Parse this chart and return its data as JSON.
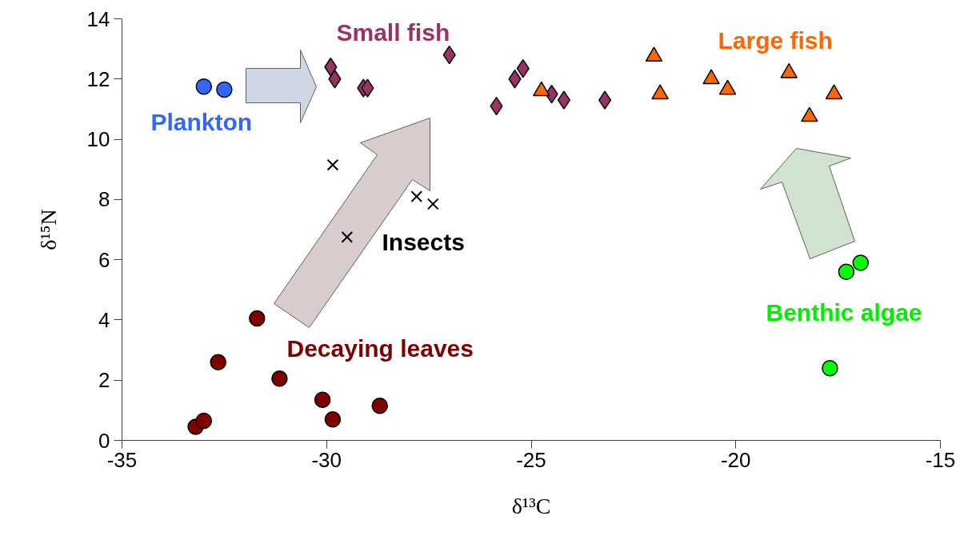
{
  "chart_data": {
    "type": "scatter",
    "xlabel": "δ¹³C",
    "ylabel": "δ¹⁵N",
    "xlim": [
      -35,
      -15
    ],
    "ylim": [
      0,
      14
    ],
    "xticks": [
      -35,
      -30,
      -25,
      -20,
      -15
    ],
    "yticks": [
      0,
      2,
      4,
      6,
      8,
      10,
      12,
      14
    ],
    "grid": false,
    "series": [
      {
        "name": "Plankton",
        "color": "#3366ff",
        "marker": "circle",
        "x": [
          -33.0,
          -32.5
        ],
        "values": [
          11.75,
          11.65
        ]
      },
      {
        "name": "Small fish",
        "color": "#993366",
        "marker": "diamond",
        "x": [
          -29.9,
          -29.8,
          -29.1,
          -29.0,
          -27.0,
          -25.85,
          -25.4,
          -25.2,
          -24.5,
          -24.2,
          -23.2
        ],
        "values": [
          12.4,
          12.0,
          11.7,
          11.7,
          12.8,
          11.1,
          12.0,
          12.35,
          11.5,
          11.3,
          11.3
        ]
      },
      {
        "name": "Large fish",
        "color": "#ff6600",
        "marker": "triangle",
        "x": [
          -24.75,
          -22.0,
          -21.85,
          -20.6,
          -20.2,
          -18.7,
          -18.2,
          -17.6
        ],
        "values": [
          11.6,
          12.75,
          11.5,
          12.0,
          11.65,
          12.2,
          10.75,
          11.5
        ]
      },
      {
        "name": "Insects",
        "color": "#000000",
        "marker": "cross",
        "x": [
          -29.85,
          -29.5,
          -27.8,
          -27.4
        ],
        "values": [
          9.15,
          6.75,
          8.1,
          7.85
        ]
      },
      {
        "name": "Decaying leaves",
        "color": "#800000",
        "marker": "circle",
        "x": [
          -33.2,
          -33.0,
          -32.65,
          -31.7,
          -31.15,
          -30.1,
          -29.85,
          -28.7
        ],
        "values": [
          0.45,
          0.65,
          2.6,
          4.05,
          2.05,
          1.35,
          0.7,
          1.15
        ]
      },
      {
        "name": "Benthic algae",
        "color": "#00ff00",
        "marker": "circle",
        "x": [
          -17.3,
          -16.95,
          -17.7
        ],
        "values": [
          5.6,
          5.9,
          2.4
        ]
      }
    ]
  }
}
